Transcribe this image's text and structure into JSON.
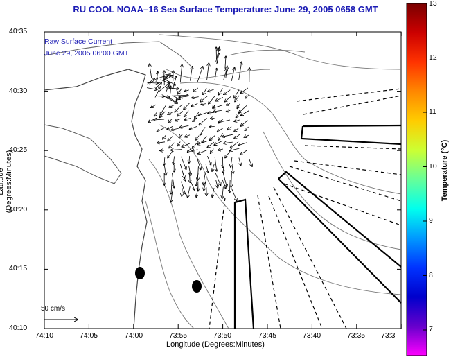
{
  "title": "RU COOL  NOAA–16  Sea Surface Temperature:  June 29, 2005 0658 GMT",
  "legend": {
    "line1": "Raw Surface Current",
    "line2": "June 29, 2005 06:00 GMT"
  },
  "axes": {
    "xlabel": "Longitude (Degrees:Minutes)",
    "ylabel": "Latitude (Degrees:Minutes)",
    "x_ticks": [
      "74:10",
      "74:05",
      "74:00",
      "73:55",
      "73:50",
      "73:45",
      "73:40",
      "73:35",
      "73:3"
    ],
    "y_ticks": [
      "40:35",
      "40:30",
      "40:25",
      "40:20",
      "40:15",
      "40:10"
    ]
  },
  "scale_label": "50 cm/s",
  "colorbar": {
    "label": "Temperature (°C)",
    "ticks": [
      "13",
      "12",
      "11",
      "10",
      "9",
      "8",
      "7"
    ],
    "colors": [
      "#7a0000",
      "#cc0000",
      "#ff3300",
      "#ff8800",
      "#ffcc00",
      "#ccff33",
      "#66ff99",
      "#00ffee",
      "#0099ff",
      "#0033ff",
      "#0000cc",
      "#6600cc",
      "#ff00ff"
    ]
  }
}
